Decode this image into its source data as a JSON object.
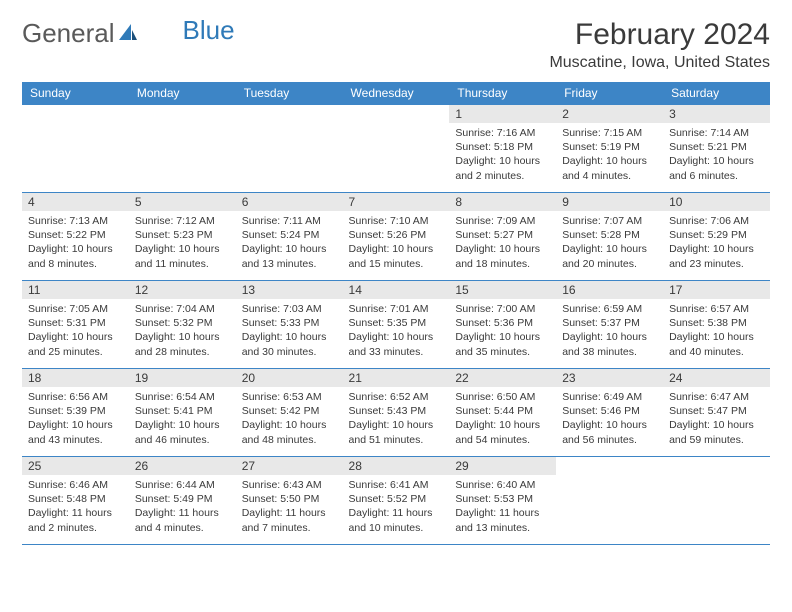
{
  "logo": {
    "text_general": "General",
    "text_blue": "Blue"
  },
  "title": "February 2024",
  "location": "Muscatine, Iowa, United States",
  "header_bg": "#3d85c6",
  "header_fg": "#ffffff",
  "daynum_bg": "#e8e8e8",
  "border_color": "#3d85c6",
  "days": [
    "Sunday",
    "Monday",
    "Tuesday",
    "Wednesday",
    "Thursday",
    "Friday",
    "Saturday"
  ],
  "weeks": [
    [
      null,
      null,
      null,
      null,
      {
        "n": "1",
        "sr": "Sunrise: 7:16 AM",
        "ss": "Sunset: 5:18 PM",
        "dl": "Daylight: 10 hours and 2 minutes."
      },
      {
        "n": "2",
        "sr": "Sunrise: 7:15 AM",
        "ss": "Sunset: 5:19 PM",
        "dl": "Daylight: 10 hours and 4 minutes."
      },
      {
        "n": "3",
        "sr": "Sunrise: 7:14 AM",
        "ss": "Sunset: 5:21 PM",
        "dl": "Daylight: 10 hours and 6 minutes."
      }
    ],
    [
      {
        "n": "4",
        "sr": "Sunrise: 7:13 AM",
        "ss": "Sunset: 5:22 PM",
        "dl": "Daylight: 10 hours and 8 minutes."
      },
      {
        "n": "5",
        "sr": "Sunrise: 7:12 AM",
        "ss": "Sunset: 5:23 PM",
        "dl": "Daylight: 10 hours and 11 minutes."
      },
      {
        "n": "6",
        "sr": "Sunrise: 7:11 AM",
        "ss": "Sunset: 5:24 PM",
        "dl": "Daylight: 10 hours and 13 minutes."
      },
      {
        "n": "7",
        "sr": "Sunrise: 7:10 AM",
        "ss": "Sunset: 5:26 PM",
        "dl": "Daylight: 10 hours and 15 minutes."
      },
      {
        "n": "8",
        "sr": "Sunrise: 7:09 AM",
        "ss": "Sunset: 5:27 PM",
        "dl": "Daylight: 10 hours and 18 minutes."
      },
      {
        "n": "9",
        "sr": "Sunrise: 7:07 AM",
        "ss": "Sunset: 5:28 PM",
        "dl": "Daylight: 10 hours and 20 minutes."
      },
      {
        "n": "10",
        "sr": "Sunrise: 7:06 AM",
        "ss": "Sunset: 5:29 PM",
        "dl": "Daylight: 10 hours and 23 minutes."
      }
    ],
    [
      {
        "n": "11",
        "sr": "Sunrise: 7:05 AM",
        "ss": "Sunset: 5:31 PM",
        "dl": "Daylight: 10 hours and 25 minutes."
      },
      {
        "n": "12",
        "sr": "Sunrise: 7:04 AM",
        "ss": "Sunset: 5:32 PM",
        "dl": "Daylight: 10 hours and 28 minutes."
      },
      {
        "n": "13",
        "sr": "Sunrise: 7:03 AM",
        "ss": "Sunset: 5:33 PM",
        "dl": "Daylight: 10 hours and 30 minutes."
      },
      {
        "n": "14",
        "sr": "Sunrise: 7:01 AM",
        "ss": "Sunset: 5:35 PM",
        "dl": "Daylight: 10 hours and 33 minutes."
      },
      {
        "n": "15",
        "sr": "Sunrise: 7:00 AM",
        "ss": "Sunset: 5:36 PM",
        "dl": "Daylight: 10 hours and 35 minutes."
      },
      {
        "n": "16",
        "sr": "Sunrise: 6:59 AM",
        "ss": "Sunset: 5:37 PM",
        "dl": "Daylight: 10 hours and 38 minutes."
      },
      {
        "n": "17",
        "sr": "Sunrise: 6:57 AM",
        "ss": "Sunset: 5:38 PM",
        "dl": "Daylight: 10 hours and 40 minutes."
      }
    ],
    [
      {
        "n": "18",
        "sr": "Sunrise: 6:56 AM",
        "ss": "Sunset: 5:39 PM",
        "dl": "Daylight: 10 hours and 43 minutes."
      },
      {
        "n": "19",
        "sr": "Sunrise: 6:54 AM",
        "ss": "Sunset: 5:41 PM",
        "dl": "Daylight: 10 hours and 46 minutes."
      },
      {
        "n": "20",
        "sr": "Sunrise: 6:53 AM",
        "ss": "Sunset: 5:42 PM",
        "dl": "Daylight: 10 hours and 48 minutes."
      },
      {
        "n": "21",
        "sr": "Sunrise: 6:52 AM",
        "ss": "Sunset: 5:43 PM",
        "dl": "Daylight: 10 hours and 51 minutes."
      },
      {
        "n": "22",
        "sr": "Sunrise: 6:50 AM",
        "ss": "Sunset: 5:44 PM",
        "dl": "Daylight: 10 hours and 54 minutes."
      },
      {
        "n": "23",
        "sr": "Sunrise: 6:49 AM",
        "ss": "Sunset: 5:46 PM",
        "dl": "Daylight: 10 hours and 56 minutes."
      },
      {
        "n": "24",
        "sr": "Sunrise: 6:47 AM",
        "ss": "Sunset: 5:47 PM",
        "dl": "Daylight: 10 hours and 59 minutes."
      }
    ],
    [
      {
        "n": "25",
        "sr": "Sunrise: 6:46 AM",
        "ss": "Sunset: 5:48 PM",
        "dl": "Daylight: 11 hours and 2 minutes."
      },
      {
        "n": "26",
        "sr": "Sunrise: 6:44 AM",
        "ss": "Sunset: 5:49 PM",
        "dl": "Daylight: 11 hours and 4 minutes."
      },
      {
        "n": "27",
        "sr": "Sunrise: 6:43 AM",
        "ss": "Sunset: 5:50 PM",
        "dl": "Daylight: 11 hours and 7 minutes."
      },
      {
        "n": "28",
        "sr": "Sunrise: 6:41 AM",
        "ss": "Sunset: 5:52 PM",
        "dl": "Daylight: 11 hours and 10 minutes."
      },
      {
        "n": "29",
        "sr": "Sunrise: 6:40 AM",
        "ss": "Sunset: 5:53 PM",
        "dl": "Daylight: 11 hours and 13 minutes."
      },
      null,
      null
    ]
  ]
}
